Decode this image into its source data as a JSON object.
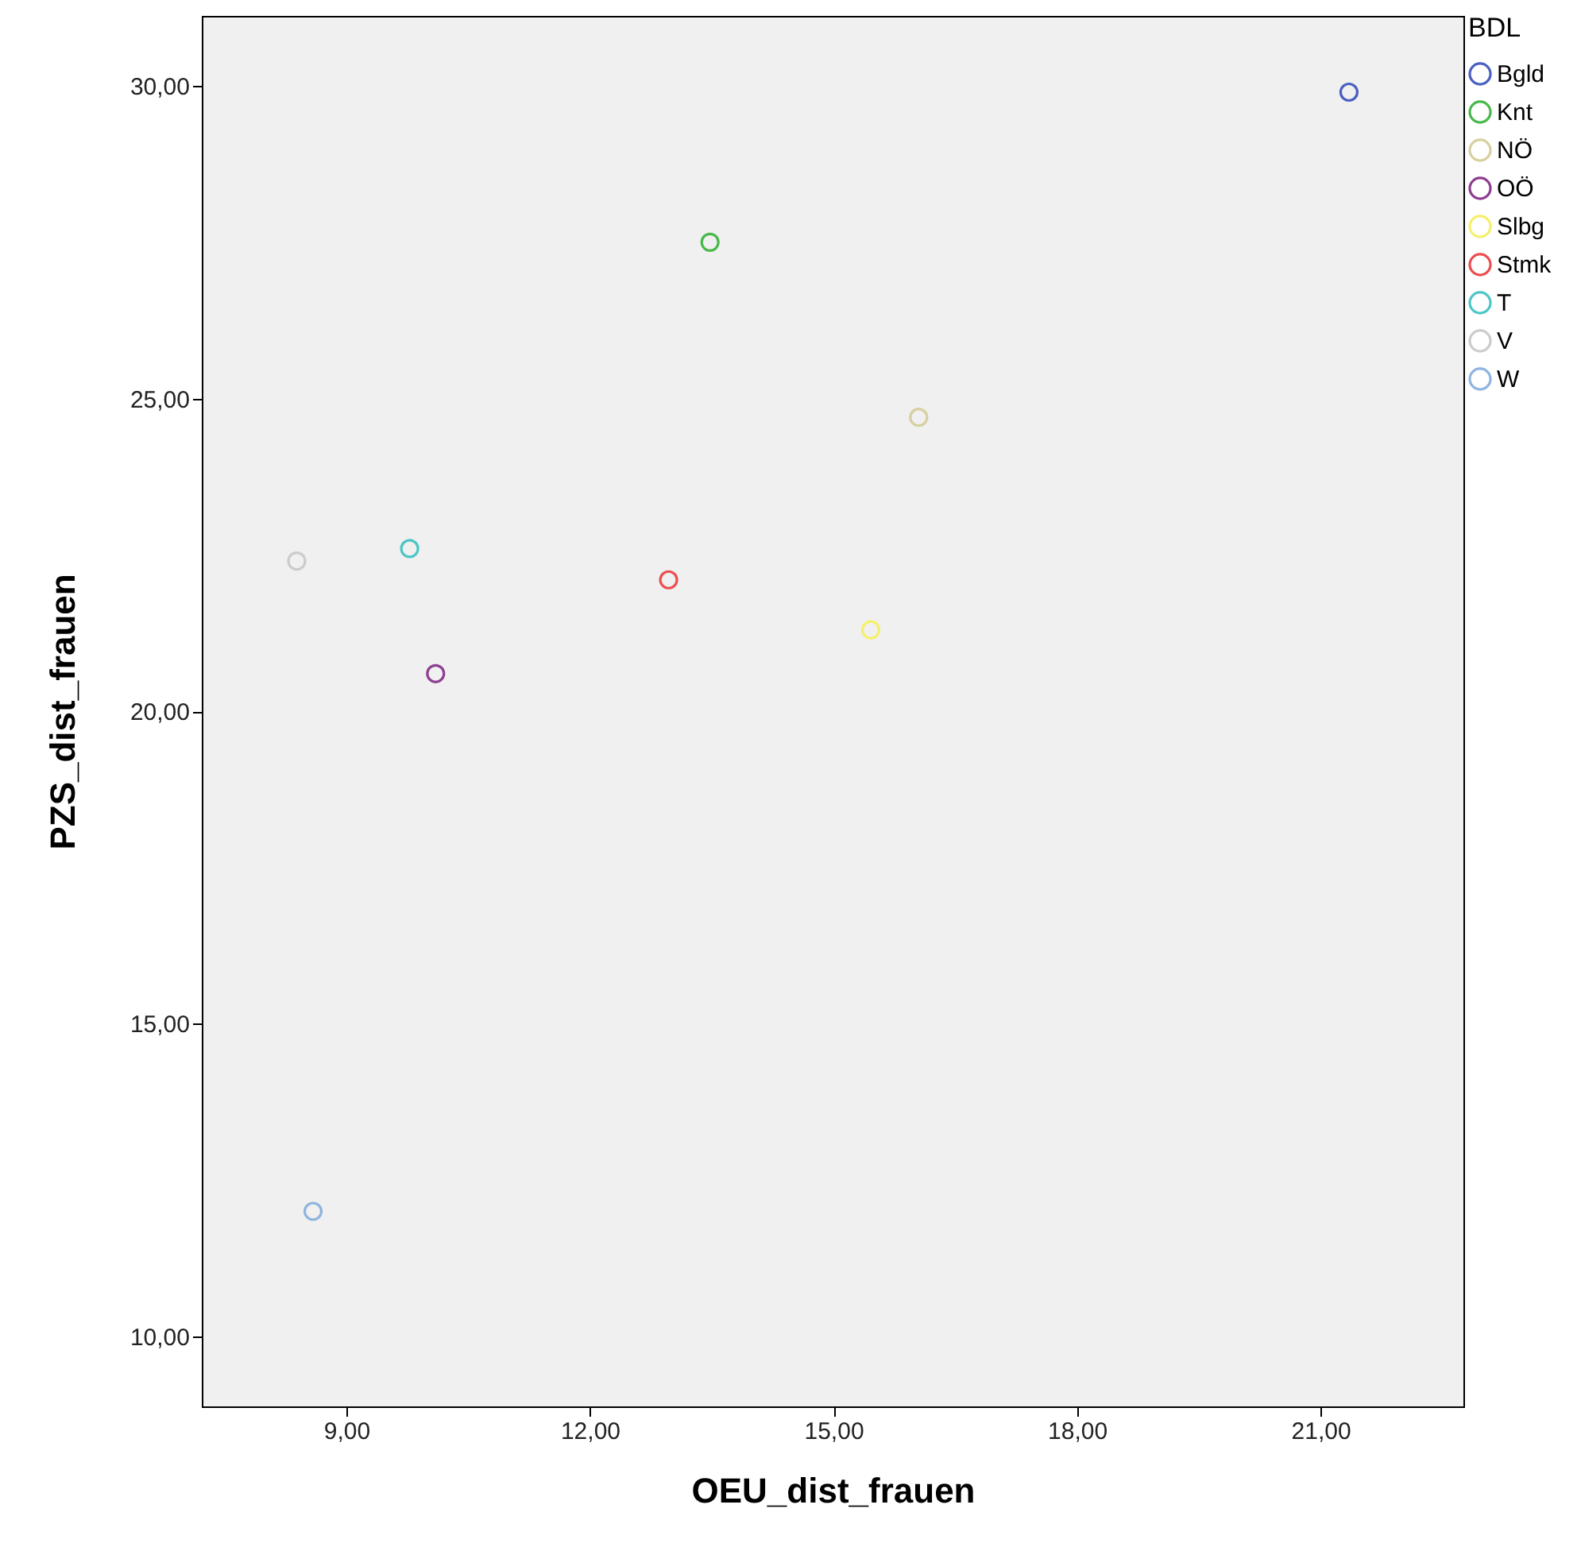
{
  "chart_data": {
    "type": "scatter",
    "xlabel": "OEU_dist_frauen",
    "ylabel": "PZS_dist_frauen",
    "legend_title": "BDL",
    "legend": "top right",
    "marker": "circle",
    "grid": false,
    "xlim": [
      7.22,
      22.76
    ],
    "ylim": [
      8.88,
      31.12
    ],
    "xticks": [
      {
        "value": 9,
        "label": "9,00"
      },
      {
        "value": 12,
        "label": "12,00"
      },
      {
        "value": 15,
        "label": "15,00"
      },
      {
        "value": 18,
        "label": "18,00"
      },
      {
        "value": 21,
        "label": "21,00"
      }
    ],
    "yticks": [
      {
        "value": 10,
        "label": "10,00"
      },
      {
        "value": 15,
        "label": "15,00"
      },
      {
        "value": 20,
        "label": "20,00"
      },
      {
        "value": 25,
        "label": "25,00"
      },
      {
        "value": 30,
        "label": "30,00"
      }
    ],
    "series": [
      {
        "name": "Bgld",
        "color": "#4a5fc1",
        "x": [
          21.35
        ],
        "values": [
          29.9
        ]
      },
      {
        "name": "Knt",
        "color": "#47b94a",
        "x": [
          13.48
        ],
        "values": [
          27.5
        ]
      },
      {
        "name": "NÖ",
        "color": "#d6d0a0",
        "x": [
          16.05
        ],
        "values": [
          24.7
        ]
      },
      {
        "name": "OÖ",
        "color": "#8e3e91",
        "x": [
          10.1
        ],
        "values": [
          20.6
        ]
      },
      {
        "name": "Slbg",
        "color": "#f5f06a",
        "x": [
          15.46
        ],
        "values": [
          21.3
        ]
      },
      {
        "name": "Stmk",
        "color": "#ea4f4f",
        "x": [
          12.97
        ],
        "values": [
          22.1
        ]
      },
      {
        "name": "T",
        "color": "#4cc6c6",
        "x": [
          9.78
        ],
        "values": [
          22.6
        ]
      },
      {
        "name": "V",
        "color": "#cccccc",
        "x": [
          8.39
        ],
        "values": [
          22.4
        ]
      },
      {
        "name": "W",
        "color": "#8fb4e0",
        "x": [
          8.59
        ],
        "values": [
          12.0
        ]
      }
    ]
  }
}
